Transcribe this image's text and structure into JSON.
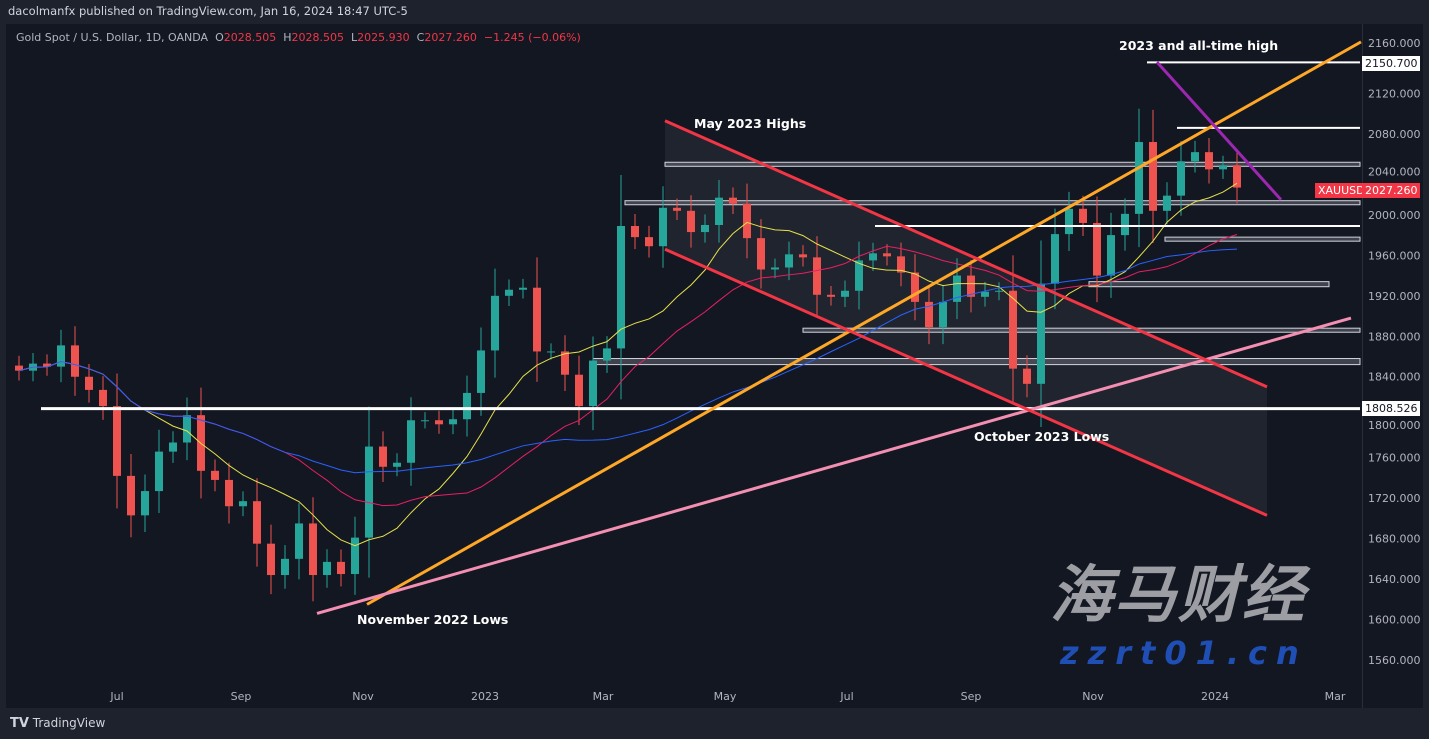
{
  "header": {
    "published": "dacolmanfx published on TradingView.com, Jan 16, 2024 18:47 UTC-5"
  },
  "legend": {
    "symbol": "Gold Spot / U.S. Dollar, 1D, OANDA",
    "o_label": "O",
    "o": "2028.505",
    "h_label": "H",
    "h": "2028.505",
    "l_label": "L",
    "l": "2025.930",
    "c_label": "C",
    "c": "2027.260",
    "change": "−1.245 (−0.06%)"
  },
  "price_tag": {
    "symbol": "XAUUSD",
    "value": "2027.260",
    "color": "#f23645"
  },
  "level_tags": [
    "2150.700",
    "1808.526"
  ],
  "annotations": {
    "ath": "2023 and all-time high",
    "may_highs": "May 2023 Highs",
    "oct_lows": "October 2023 Lows",
    "nov_lows": "November 2022 Lows"
  },
  "footer": {
    "brand": "TradingView"
  },
  "watermark": {
    "cn": "海马财经",
    "url": "zzrt01.cn"
  },
  "colors": {
    "up": "#26a69a",
    "down": "#ef5350",
    "ma_fast": "#e6e04a",
    "ma_mid": "#e91e63",
    "ma_slow": "#2962ff",
    "uptrend": "#ffa726",
    "channel": "#f23645",
    "support": "#f48fb1",
    "downtrend": "#9c27b0"
  },
  "chart_data": {
    "type": "candlestick",
    "ylim": [
      1560,
      2170
    ],
    "y_ticks": [
      "2160.000",
      "2120.000",
      "2080.000",
      "2040.000",
      "2000.000",
      "1960.000",
      "1920.000",
      "1880.000",
      "1840.000",
      "1800.000",
      "1760.000",
      "1720.000",
      "1680.000",
      "1640.000",
      "1600.000",
      "1560.000"
    ],
    "x_ticks": [
      {
        "label": "Jul",
        "date": "2022-07-01"
      },
      {
        "label": "Sep",
        "date": "2022-09-01"
      },
      {
        "label": "Nov",
        "date": "2022-11-01"
      },
      {
        "label": "2023",
        "date": "2023-01-01"
      },
      {
        "label": "Mar",
        "date": "2023-03-01"
      },
      {
        "label": "May",
        "date": "2023-05-01"
      },
      {
        "label": "Jul",
        "date": "2023-07-01"
      },
      {
        "label": "Sep",
        "date": "2023-09-01"
      },
      {
        "label": "Nov",
        "date": "2023-11-01"
      },
      {
        "label": "2024",
        "date": "2024-01-01"
      },
      {
        "label": "Mar",
        "date": "2024-03-01"
      }
    ],
    "start_date": "2022-05-13",
    "interval_days": 7,
    "closes": [
      1846,
      1853,
      1850,
      1871,
      1840,
      1827,
      1811,
      1742,
      1703,
      1727,
      1766,
      1775,
      1802,
      1747,
      1738,
      1712,
      1717,
      1675,
      1644,
      1660,
      1695,
      1644,
      1657,
      1645,
      1681,
      1771,
      1751,
      1755,
      1797,
      1797,
      1793,
      1798,
      1824,
      1866,
      1920,
      1926,
      1928,
      1865,
      1865,
      1842,
      1811,
      1856,
      1868,
      1989,
      1978,
      1969,
      2007,
      2004,
      1983,
      1990,
      2017,
      2011,
      1977,
      1946,
      1948,
      1961,
      1958,
      1921,
      1919,
      1925,
      1955,
      1962,
      1959,
      1943,
      1914,
      1889,
      1914,
      1940,
      1919,
      1924,
      1925,
      1848,
      1833,
      1932,
      1981,
      2006,
      1992,
      1940,
      1980,
      2001,
      2072,
      2004,
      2019,
      2053,
      2062,
      2045,
      2049,
      2027
    ],
    "horizontal_levels": [
      {
        "price": 2150.7,
        "from": "2023-11-28"
      },
      {
        "price": 2086,
        "from": "2023-12-13"
      },
      {
        "price": 1989,
        "from": "2023-07-15"
      },
      {
        "price": 1808.526,
        "from": "2022-05-24"
      }
    ],
    "zones": [
      {
        "top": 2052,
        "bottom": 2048,
        "from": "2023-04-01"
      },
      {
        "top": 2014,
        "bottom": 2010,
        "from": "2023-03-12"
      },
      {
        "top": 1978,
        "bottom": 1974,
        "from": "2023-12-07"
      },
      {
        "top": 1934,
        "bottom": 1929,
        "from": "2023-10-30",
        "to": "2024-02-27"
      },
      {
        "top": 1888,
        "bottom": 1884,
        "from": "2023-06-09"
      },
      {
        "top": 1858,
        "bottom": 1852,
        "from": "2023-02-24"
      }
    ],
    "trendlines": [
      {
        "name": "uptrend",
        "from": [
          "2022-11-03",
          1615
        ],
        "to": [
          "2024-03-14",
          2171
        ]
      },
      {
        "name": "support",
        "from": [
          "2022-10-09",
          1606
        ],
        "to": [
          "2024-03-09",
          1898
        ]
      },
      {
        "name": "channel-upper",
        "from": [
          "2023-04-01",
          2093
        ],
        "to": [
          "2024-01-27",
          1830
        ]
      },
      {
        "name": "channel-lower",
        "from": [
          "2023-04-01",
          1966
        ],
        "to": [
          "2024-01-27",
          1703
        ]
      },
      {
        "name": "downtrend",
        "from": [
          "2023-12-03",
          2151
        ],
        "to": [
          "2024-02-03",
          2015
        ]
      }
    ]
  }
}
